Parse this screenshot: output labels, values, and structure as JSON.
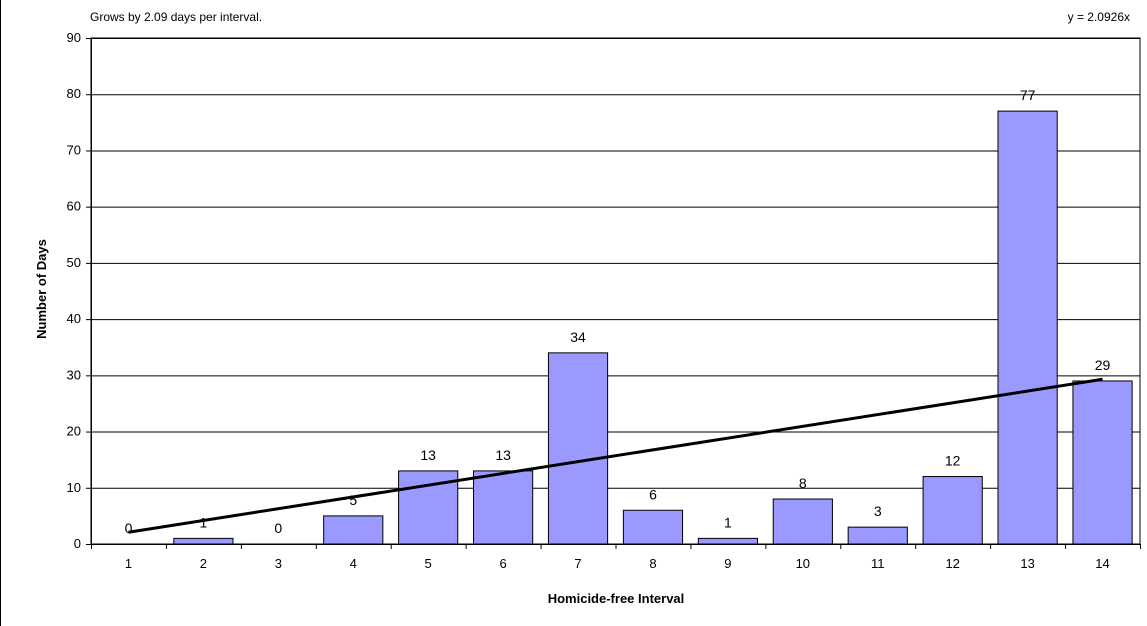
{
  "annotations": {
    "top_left": "Grows by 2.09 days per interval.",
    "top_right": "y = 2.0926x"
  },
  "chart_data": {
    "type": "bar",
    "title": "",
    "xlabel": "Homicide-free Interval",
    "ylabel": "Number of Days",
    "categories": [
      "1",
      "2",
      "3",
      "4",
      "5",
      "6",
      "7",
      "8",
      "9",
      "10",
      "11",
      "12",
      "13",
      "14"
    ],
    "values": [
      0,
      1,
      0,
      5,
      13,
      13,
      34,
      6,
      1,
      8,
      3,
      12,
      77,
      29
    ],
    "data_labels": [
      "0",
      "1",
      "0",
      "5",
      "13",
      "13",
      "34",
      "6",
      "1",
      "8",
      "3",
      "12",
      "77",
      "29"
    ],
    "ylim": [
      0,
      90
    ],
    "yticks": [
      0,
      10,
      20,
      30,
      40,
      50,
      60,
      70,
      80,
      90
    ],
    "grid": true,
    "legend": "none",
    "trendline": {
      "type": "linear",
      "slope": 2.0926,
      "intercept": 0
    },
    "colors": {
      "bar_fill": "#9999ff",
      "bar_stroke": "#000000",
      "trendline": "#000000",
      "grid": "#000000"
    }
  }
}
